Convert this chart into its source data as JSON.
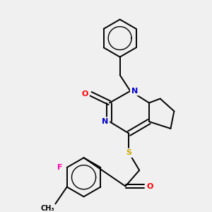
{
  "background_color": "#f0f0f0",
  "atom_colors": {
    "C": "#000000",
    "N": "#0000cc",
    "O": "#ff0000",
    "S": "#ccaa00",
    "F": "#ff00aa"
  },
  "bond_color": "#000000",
  "bond_width": 1.4,
  "white": "#f0f0f0"
}
